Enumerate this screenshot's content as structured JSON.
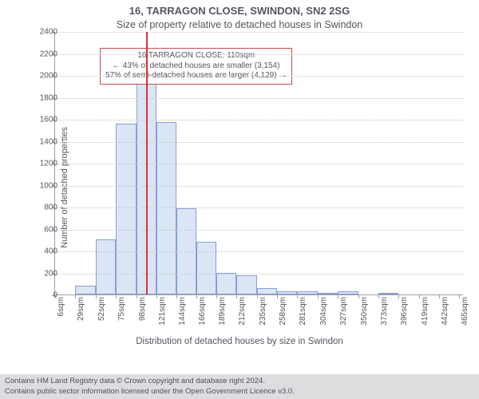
{
  "title_line1": "16, TARRAGON CLOSE, SWINDON, SN2 2SG",
  "title_line2": "Size of property relative to detached houses in Swindon",
  "ylabel": "Number of detached properties",
  "xlabel": "Distribution of detached houses by size in Swindon",
  "chart": {
    "type": "histogram",
    "ylim": [
      0,
      2400
    ],
    "ytick_step": 200,
    "bar_fill": "#dbe5f6",
    "bar_stroke": "#88a0d0",
    "grid_color": "#c8c8cc",
    "axis_color": "#a0a0a8",
    "background_color": "#ffffff",
    "marker_line": {
      "position_sqm": 110,
      "color": "#d73333",
      "width": 2
    },
    "xticks": [
      {
        "label": "6sqm",
        "v": 6
      },
      {
        "label": "29sqm",
        "v": 29
      },
      {
        "label": "52sqm",
        "v": 52
      },
      {
        "label": "75sqm",
        "v": 75
      },
      {
        "label": "98sqm",
        "v": 98
      },
      {
        "label": "121sqm",
        "v": 121
      },
      {
        "label": "144sqm",
        "v": 144
      },
      {
        "label": "166sqm",
        "v": 166
      },
      {
        "label": "189sqm",
        "v": 189
      },
      {
        "label": "212sqm",
        "v": 212
      },
      {
        "label": "235sqm",
        "v": 235
      },
      {
        "label": "258sqm",
        "v": 258
      },
      {
        "label": "281sqm",
        "v": 281
      },
      {
        "label": "304sqm",
        "v": 304
      },
      {
        "label": "327sqm",
        "v": 327
      },
      {
        "label": "350sqm",
        "v": 350
      },
      {
        "label": "373sqm",
        "v": 373
      },
      {
        "label": "396sqm",
        "v": 396
      },
      {
        "label": "419sqm",
        "v": 419
      },
      {
        "label": "442sqm",
        "v": 442
      },
      {
        "label": "465sqm",
        "v": 465
      }
    ],
    "x_min": 6,
    "x_max": 470,
    "bars": [
      {
        "x0": 29,
        "x1": 52,
        "count": 80
      },
      {
        "x0": 52,
        "x1": 75,
        "count": 505
      },
      {
        "x0": 75,
        "x1": 98,
        "count": 1560
      },
      {
        "x0": 98,
        "x1": 121,
        "count": 1945
      },
      {
        "x0": 121,
        "x1": 144,
        "count": 1570
      },
      {
        "x0": 144,
        "x1": 166,
        "count": 785
      },
      {
        "x0": 166,
        "x1": 189,
        "count": 480
      },
      {
        "x0": 189,
        "x1": 212,
        "count": 195
      },
      {
        "x0": 212,
        "x1": 235,
        "count": 175
      },
      {
        "x0": 235,
        "x1": 258,
        "count": 55
      },
      {
        "x0": 258,
        "x1": 281,
        "count": 30
      },
      {
        "x0": 281,
        "x1": 304,
        "count": 30
      },
      {
        "x0": 304,
        "x1": 327,
        "count": 15
      },
      {
        "x0": 327,
        "x1": 350,
        "count": 30
      },
      {
        "x0": 373,
        "x1": 396,
        "count": 15
      }
    ]
  },
  "annotation": {
    "line1": "16 TARRAGON CLOSE: 110sqm",
    "line2": "← 43% of detached houses are smaller (3,154)",
    "line3": "57% of semi-detached houses are larger (4,129) →",
    "border_color": "#c05050",
    "fontsize": 10
  },
  "footer": {
    "line1": "Contains HM Land Registry data © Crown copyright and database right 2024.",
    "line2": "Contains public sector information licensed under the Open Government Licence v3.0.",
    "background": "#dddde0",
    "text_color": "#505058"
  }
}
